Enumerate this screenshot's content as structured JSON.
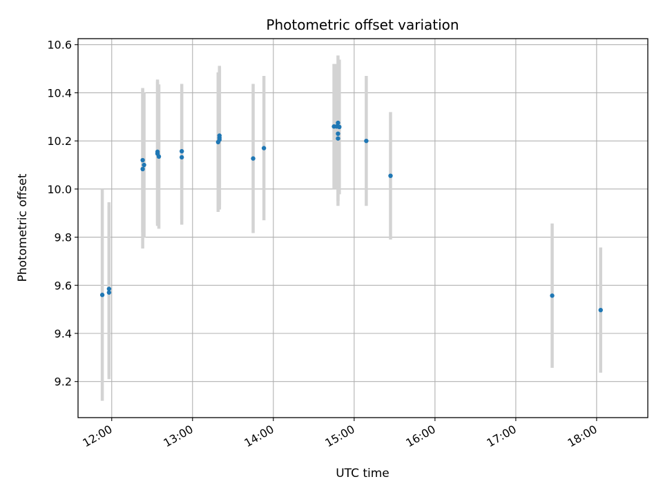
{
  "chart_data": {
    "type": "scatter",
    "title": "Photometric offset variation",
    "xlabel": "UTC time",
    "ylabel": "Photometric offset",
    "xlim": [
      "11:35",
      "18:38"
    ],
    "ylim": [
      9.05,
      10.625
    ],
    "grid": true,
    "legend": "none",
    "x_ticks": [
      "12:00",
      "13:00",
      "14:00",
      "15:00",
      "16:00",
      "17:00",
      "18:00"
    ],
    "y_ticks": [
      "9.2",
      "9.4",
      "9.6",
      "9.8",
      "10.0",
      "10.2",
      "10.4",
      "10.6"
    ],
    "colors": {
      "points": "#1f77b4",
      "error_bars": "#d3d3d3",
      "grid": "#b0b0b0"
    },
    "series": [
      {
        "x": [
          "11:53",
          "11:58",
          "11:58",
          "12:23",
          "12:23",
          "12:24",
          "12:34",
          "12:34",
          "12:35",
          "12:52",
          "12:52",
          "13:19",
          "13:20",
          "13:20",
          "13:20",
          "13:45",
          "13:53",
          "14:45",
          "14:47",
          "14:48",
          "14:48",
          "14:48",
          "14:49",
          "15:09",
          "15:27",
          "17:27",
          "18:03"
        ],
        "y": [
          9.56,
          9.57,
          9.585,
          10.083,
          10.12,
          10.1,
          10.155,
          10.147,
          10.135,
          10.157,
          10.132,
          10.195,
          10.213,
          10.222,
          10.205,
          10.127,
          10.17,
          10.26,
          10.26,
          10.21,
          10.23,
          10.275,
          10.258,
          10.2,
          10.055,
          9.557,
          9.497
        ],
        "yerr": [
          0.44,
          0.36,
          0.36,
          0.33,
          0.3,
          0.3,
          0.3,
          0.3,
          0.3,
          0.28,
          0.28,
          0.29,
          0.29,
          0.29,
          0.29,
          0.31,
          0.3,
          0.26,
          0.26,
          0.28,
          0.28,
          0.28,
          0.28,
          0.27,
          0.265,
          0.3,
          0.26
        ]
      }
    ]
  }
}
